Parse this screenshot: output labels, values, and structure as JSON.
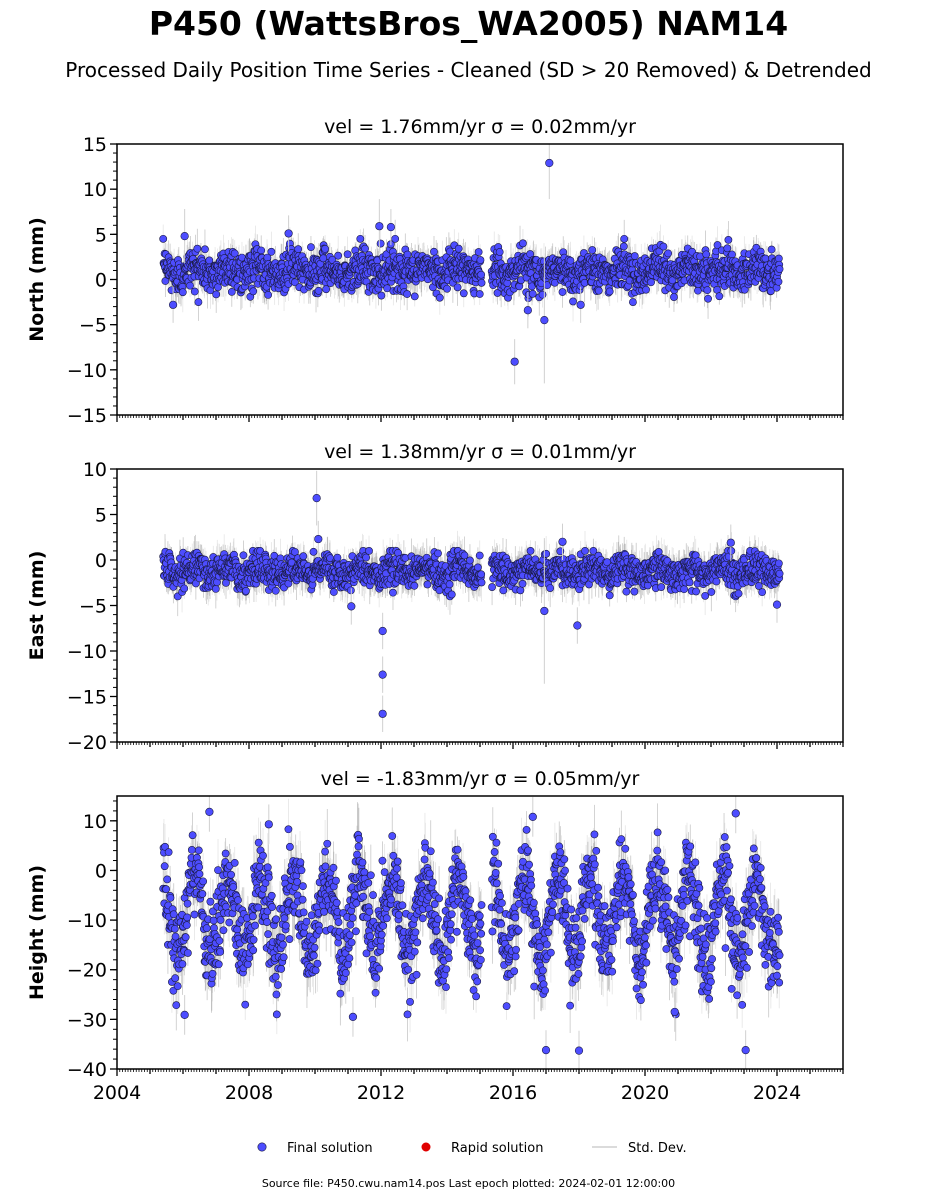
{
  "figure": {
    "title": "P450 (WattsBros_WA2005) NAM14",
    "subtitle": "Processed Daily Position Time Series - Cleaned (SD > 20 Removed) & Detrended",
    "source_note": "Source file: P450.cwu.nam14.pos  Last epoch plotted: 2024-02-01 12:00:00"
  },
  "legend": {
    "placement": "bottom-center",
    "items": [
      {
        "label": "Final solution",
        "color": "#4d4dff",
        "marker": "circle"
      },
      {
        "label": "Rapid solution",
        "color": "#e00000",
        "marker": "circle"
      },
      {
        "label": "Std. Dev.",
        "color": "#cfcfcf",
        "marker": "line"
      }
    ]
  },
  "colors": {
    "final": "#4d4dff",
    "final_edge": "#1a1a40",
    "errorbar": "#9a9a9a",
    "errorbar_light": "#d0d0d0"
  },
  "chart_data": [
    {
      "type": "scatter",
      "title": "vel = 1.76mm/yr   σ = 0.02mm/yr",
      "ylabel": "North (mm)",
      "xlim": [
        2004,
        2026
      ],
      "ylim": [
        -15,
        15
      ],
      "yticks": [
        -15,
        -10,
        -5,
        0,
        5,
        10,
        15
      ],
      "xticks": [],
      "data_start": 2005.4,
      "data_end": 2024.08,
      "gap": [
        2015.05,
        2015.35
      ],
      "typical_range": [
        -2.5,
        4.5
      ],
      "center": 1,
      "annual_amplitude": 0.5,
      "noise": 1.1,
      "typical_sd": 1.6,
      "outliers": [
        {
          "x": 2006.05,
          "y": 4.8,
          "sd": 3
        },
        {
          "x": 2005.7,
          "y": -2.8,
          "sd": 2
        },
        {
          "x": 2011.95,
          "y": 5.9,
          "sd": 3
        },
        {
          "x": 2012.3,
          "y": 5.8,
          "sd": 2
        },
        {
          "x": 2009.2,
          "y": 5.1,
          "sd": 2
        },
        {
          "x": 2017.1,
          "y": 12.9,
          "sd": 4
        },
        {
          "x": 2016.05,
          "y": -9.1,
          "sd": 2.5
        },
        {
          "x": 2016.45,
          "y": -3.4,
          "sd": 2
        },
        {
          "x": 2018.05,
          "y": -2.8,
          "sd": 2
        },
        {
          "x": 2016.95,
          "y": -4.5,
          "sd": 7
        }
      ]
    },
    {
      "type": "scatter",
      "title": "vel = 1.38mm/yr   σ = 0.01mm/yr",
      "ylabel": "East (mm)",
      "xlim": [
        2004,
        2026
      ],
      "ylim": [
        -20,
        10
      ],
      "yticks": [
        -20,
        -15,
        -10,
        -5,
        0,
        5,
        10
      ],
      "xticks": [],
      "data_start": 2005.4,
      "data_end": 2024.08,
      "gap": [
        2015.05,
        2015.35
      ],
      "typical_range": [
        -4,
        1
      ],
      "center": -1.2,
      "annual_amplitude": 0.5,
      "noise": 0.9,
      "typical_sd": 1.6,
      "outliers": [
        {
          "x": 2010.05,
          "y": 6.8,
          "sd": 3
        },
        {
          "x": 2010.1,
          "y": 2.3,
          "sd": 2
        },
        {
          "x": 2012.05,
          "y": -7.8,
          "sd": 2
        },
        {
          "x": 2012.05,
          "y": -12.6,
          "sd": 2
        },
        {
          "x": 2012.05,
          "y": -16.9,
          "sd": 2
        },
        {
          "x": 2011.1,
          "y": -5.1,
          "sd": 2
        },
        {
          "x": 2017.95,
          "y": -7.2,
          "sd": 2
        },
        {
          "x": 2016.95,
          "y": -5.6,
          "sd": 8
        },
        {
          "x": 2017.5,
          "y": 2.0,
          "sd": 2
        },
        {
          "x": 2022.6,
          "y": 1.9,
          "sd": 2
        },
        {
          "x": 2024.0,
          "y": -4.9,
          "sd": 2
        }
      ]
    },
    {
      "type": "scatter",
      "title": "vel = -1.83mm/yr   σ = 0.05mm/yr",
      "ylabel": "Height (mm)",
      "xlim": [
        2004,
        2026
      ],
      "ylim": [
        -40,
        15
      ],
      "yticks": [
        -40,
        -30,
        -20,
        -10,
        0,
        10
      ],
      "xticks": [
        2004,
        2008,
        2012,
        2016,
        2020,
        2024
      ],
      "data_start": 2005.4,
      "data_end": 2024.08,
      "gap": [
        2015.05,
        2015.35
      ],
      "typical_range": [
        -29,
        11
      ],
      "center": -9,
      "annual_amplitude": 8,
      "noise": 4.2,
      "typical_sd": 5,
      "outliers": [
        {
          "x": 2006.8,
          "y": 11.8,
          "sd": 4
        },
        {
          "x": 2008.6,
          "y": 9.3,
          "sd": 4
        },
        {
          "x": 2017.0,
          "y": -36.2,
          "sd": 4
        },
        {
          "x": 2018.0,
          "y": -36.3,
          "sd": 4
        },
        {
          "x": 2022.75,
          "y": 11.5,
          "sd": 4
        },
        {
          "x": 2023.05,
          "y": -36.2,
          "sd": 4
        },
        {
          "x": 2016.6,
          "y": 10.8,
          "sd": 4
        },
        {
          "x": 2006.05,
          "y": -29.1,
          "sd": 4
        },
        {
          "x": 2011.15,
          "y": -29.5,
          "sd": 4
        },
        {
          "x": 2020.9,
          "y": -28.5,
          "sd": 4
        }
      ]
    }
  ]
}
